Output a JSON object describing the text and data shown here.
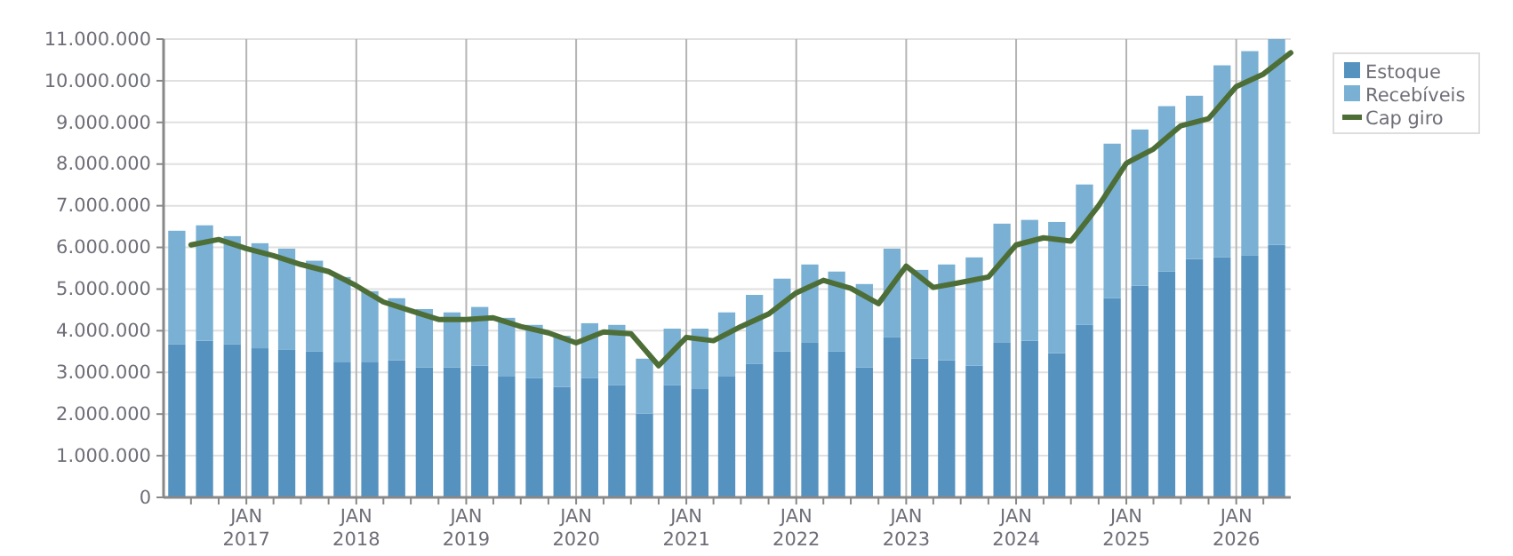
{
  "chart_data": {
    "type": "bar",
    "stacked": true,
    "grid": true,
    "legend": "top right",
    "x": [
      "2016-05-15",
      "2016-08-15",
      "2016-11-15",
      "2017-02-15",
      "2017-05-15",
      "2017-08-15",
      "2017-11-15",
      "2018-02-15",
      "2018-05-15",
      "2018-08-15",
      "2018-11-15",
      "2019-02-15",
      "2019-05-15",
      "2019-08-15",
      "2019-11-15",
      "2020-02-15",
      "2020-05-15",
      "2020-08-15",
      "2020-11-15",
      "2021-02-15",
      "2021-05-15",
      "2021-08-15",
      "2021-11-15",
      "2022-02-15",
      "2022-05-15",
      "2022-08-15",
      "2022-11-15",
      "2023-02-15",
      "2023-05-15",
      "2023-08-15",
      "2023-11-15",
      "2024-02-15",
      "2024-05-15",
      "2024-08-15",
      "2024-11-15",
      "2025-02-15",
      "2025-05-15",
      "2025-08-15",
      "2025-11-15",
      "2026-02-15",
      "2026-05-15"
    ],
    "series": [
      {
        "name": "Estoque",
        "color": "#5592c0",
        "values": [
          3670000,
          3760000,
          3670000,
          3580000,
          3540000,
          3500000,
          3240000,
          3240000,
          3290000,
          3120000,
          3120000,
          3160000,
          2900000,
          2860000,
          2650000,
          2860000,
          2690000,
          2010000,
          2690000,
          2600000,
          2900000,
          3200000,
          3500000,
          3710000,
          3500000,
          3120000,
          3840000,
          3330000,
          3290000,
          3160000,
          3710000,
          3760000,
          3460000,
          4140000,
          4780000,
          5080000,
          5420000,
          5720000,
          5760000,
          5800000,
          6060000
        ]
      },
      {
        "name": "Recebíveis",
        "color": "#79b0d3",
        "values": [
          2730000,
          2770000,
          2600000,
          2520000,
          2430000,
          2180000,
          2050000,
          1710000,
          1490000,
          1400000,
          1320000,
          1410000,
          1410000,
          1280000,
          1230000,
          1320000,
          1450000,
          1320000,
          1360000,
          1450000,
          1540000,
          1660000,
          1750000,
          1880000,
          1920000,
          2000000,
          2130000,
          2130000,
          2300000,
          2600000,
          2860000,
          2900000,
          3150000,
          3370000,
          3710000,
          3750000,
          3970000,
          3920000,
          4610000,
          4910000,
          4940000
        ]
      },
      {
        "name": "Cap giro",
        "type": "line",
        "color": "#4e6e38",
        "x": [
          "2016-07-01",
          "2016-10-01",
          "2017-01-01",
          "2017-04-01",
          "2017-07-01",
          "2017-10-01",
          "2018-01-01",
          "2018-04-01",
          "2018-07-01",
          "2018-10-01",
          "2019-01-01",
          "2019-04-01",
          "2019-07-01",
          "2019-10-01",
          "2020-01-01",
          "2020-04-01",
          "2020-07-01",
          "2020-10-01",
          "2021-01-01",
          "2021-04-01",
          "2021-07-01",
          "2021-10-01",
          "2022-01-01",
          "2022-04-01",
          "2022-07-01",
          "2022-10-01",
          "2023-01-01",
          "2023-04-01",
          "2023-07-01",
          "2023-10-01",
          "2024-01-01",
          "2024-04-01",
          "2024-07-01",
          "2024-10-01",
          "2025-01-01",
          "2025-04-01",
          "2025-07-01",
          "2025-10-01",
          "2026-01-01",
          "2026-04-01",
          "2026-07-01"
        ],
        "values": [
          6060000,
          6190000,
          5970000,
          5800000,
          5590000,
          5420000,
          5080000,
          4690000,
          4480000,
          4270000,
          4270000,
          4310000,
          4100000,
          3950000,
          3710000,
          3970000,
          3930000,
          3160000,
          3840000,
          3760000,
          4100000,
          4400000,
          4910000,
          5210000,
          5020000,
          4650000,
          5550000,
          5040000,
          5160000,
          5290000,
          6060000,
          6230000,
          6150000,
          7000000,
          8020000,
          8360000,
          8920000,
          9090000,
          9860000,
          10160000,
          10670000
        ]
      }
    ],
    "xlim": [
      "2016-04-01",
      "2026-07-01"
    ],
    "xticks": [
      {
        "value": "2016-07-01",
        "label": null
      },
      {
        "value": "2016-10-01",
        "label": null
      },
      {
        "value": "2017-01-01",
        "label": "JAN 2017"
      },
      {
        "value": "2017-04-01",
        "label": null
      },
      {
        "value": "2017-07-01",
        "label": null
      },
      {
        "value": "2017-10-01",
        "label": null
      },
      {
        "value": "2018-01-01",
        "label": "JAN 2018"
      },
      {
        "value": "2018-04-01",
        "label": null
      },
      {
        "value": "2018-07-01",
        "label": null
      },
      {
        "value": "2018-10-01",
        "label": null
      },
      {
        "value": "2019-01-01",
        "label": "JAN 2019"
      },
      {
        "value": "2019-04-01",
        "label": null
      },
      {
        "value": "2019-07-01",
        "label": null
      },
      {
        "value": "2019-10-01",
        "label": null
      },
      {
        "value": "2020-01-01",
        "label": "JAN 2020"
      },
      {
        "value": "2020-04-01",
        "label": null
      },
      {
        "value": "2020-07-01",
        "label": null
      },
      {
        "value": "2020-10-01",
        "label": null
      },
      {
        "value": "2021-01-01",
        "label": "JAN 2021"
      },
      {
        "value": "2021-04-01",
        "label": null
      },
      {
        "value": "2021-07-01",
        "label": null
      },
      {
        "value": "2021-10-01",
        "label": null
      },
      {
        "value": "2022-01-01",
        "label": "JAN 2022"
      },
      {
        "value": "2022-04-01",
        "label": null
      },
      {
        "value": "2022-07-01",
        "label": null
      },
      {
        "value": "2022-10-01",
        "label": null
      },
      {
        "value": "2023-01-01",
        "label": "JAN 2023"
      },
      {
        "value": "2023-04-01",
        "label": null
      },
      {
        "value": "2023-07-01",
        "label": null
      },
      {
        "value": "2023-10-01",
        "label": null
      },
      {
        "value": "2024-01-01",
        "label": "JAN 2024"
      },
      {
        "value": "2024-04-01",
        "label": null
      },
      {
        "value": "2024-07-01",
        "label": null
      },
      {
        "value": "2024-10-01",
        "label": null
      },
      {
        "value": "2025-01-01",
        "label": "JAN 2025"
      },
      {
        "value": "2025-04-01",
        "label": null
      },
      {
        "value": "2025-07-01",
        "label": null
      },
      {
        "value": "2025-10-01",
        "label": null
      },
      {
        "value": "2026-01-01",
        "label": "JAN 2026"
      },
      {
        "value": "2026-04-01",
        "label": null
      }
    ],
    "ylim": [
      0,
      11000000
    ],
    "yticks": [
      0,
      {
        "value": 1000000,
        "label": "1.000.000"
      },
      {
        "value": 2000000,
        "label": "2.000.000"
      },
      {
        "value": 3000000,
        "label": "3.000.000"
      },
      {
        "value": 4000000,
        "label": "4.000.000"
      },
      {
        "value": 5000000,
        "label": "5.000.000"
      },
      {
        "value": 6000000,
        "label": "6.000.000"
      },
      {
        "value": 7000000,
        "label": "7.000.000"
      },
      {
        "value": 8000000,
        "label": "8.000.000"
      },
      {
        "value": 9000000,
        "label": "9.000.000"
      },
      {
        "value": 10000000,
        "label": "10.000.000"
      },
      {
        "value": 11000000,
        "label": "11.000.000"
      }
    ]
  }
}
